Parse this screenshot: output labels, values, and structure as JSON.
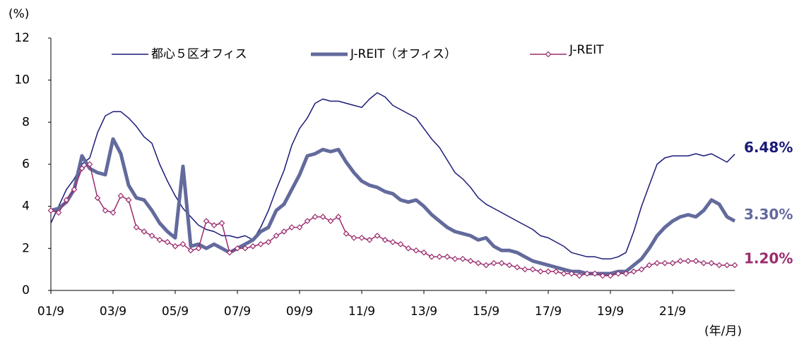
{
  "chart_data": {
    "type": "line",
    "y_label": "(%)",
    "x_label": "(年/月)",
    "categories": [
      "01/9",
      null,
      null,
      null,
      null,
      null,
      null,
      null,
      "03/9",
      null,
      null,
      null,
      null,
      null,
      null,
      null,
      "05/9",
      null,
      null,
      null,
      null,
      null,
      null,
      null,
      "07/9",
      null,
      null,
      null,
      null,
      null,
      null,
      null,
      "09/9",
      null,
      null,
      null,
      null,
      null,
      null,
      null,
      "11/9",
      null,
      null,
      null,
      null,
      null,
      null,
      null,
      "13/9",
      null,
      null,
      null,
      null,
      null,
      null,
      null,
      "15/9",
      null,
      null,
      null,
      null,
      null,
      null,
      null,
      "17/9",
      null,
      null,
      null,
      null,
      null,
      null,
      null,
      "19/9",
      null,
      null,
      null,
      null,
      null,
      null,
      null,
      "21/9",
      null,
      null,
      null,
      null,
      null,
      null,
      null,
      null
    ],
    "ylim": [
      0,
      12
    ],
    "yticks": [
      0,
      2,
      4,
      6,
      8,
      10,
      12
    ],
    "series": [
      {
        "name": "都心５区オフィス",
        "color": "#1a1a78",
        "width": 1.5,
        "markers": false,
        "values": [
          3.2,
          4.0,
          4.8,
          5.3,
          6.0,
          6.3,
          7.5,
          8.3,
          8.5,
          8.5,
          8.2,
          7.8,
          7.3,
          7.0,
          6.0,
          5.2,
          4.5,
          3.9,
          3.5,
          3.1,
          2.9,
          2.8,
          2.6,
          2.6,
          2.5,
          2.6,
          2.4,
          3.0,
          3.8,
          4.8,
          5.7,
          6.9,
          7.7,
          8.2,
          8.9,
          9.1,
          9.0,
          9.0,
          8.9,
          8.8,
          8.7,
          9.1,
          9.4,
          9.2,
          8.8,
          8.6,
          8.4,
          8.2,
          7.7,
          7.2,
          6.8,
          6.2,
          5.6,
          5.3,
          4.9,
          4.4,
          4.1,
          3.9,
          3.7,
          3.5,
          3.3,
          3.1,
          2.9,
          2.6,
          2.5,
          2.3,
          2.1,
          1.8,
          1.7,
          1.6,
          1.6,
          1.5,
          1.5,
          1.6,
          1.8,
          2.8,
          4.0,
          5.0,
          6.0,
          6.3,
          6.4,
          6.4,
          6.4,
          6.5,
          6.4,
          6.5,
          6.3,
          6.1,
          6.48
        ],
        "value_labels": [
          null,
          null,
          null,
          null,
          null,
          null,
          null,
          null,
          null,
          null,
          null,
          null,
          null,
          null,
          null,
          null,
          null,
          null,
          null,
          null,
          null,
          null,
          null,
          null,
          null,
          null,
          null,
          null,
          null,
          null,
          null,
          null,
          null,
          null,
          null,
          null,
          null,
          null,
          null,
          null,
          null,
          null,
          null,
          null,
          null,
          null,
          null,
          null,
          null,
          null,
          null,
          null,
          null,
          null,
          null,
          null,
          null,
          null,
          null,
          null,
          null,
          null,
          null,
          null,
          null,
          null,
          null,
          null,
          null,
          null,
          null,
          null,
          null,
          null,
          null,
          null,
          null,
          null,
          null,
          null,
          null,
          null,
          null,
          null,
          null,
          null,
          null,
          null,
          "6.48%"
        ]
      },
      {
        "name": "J-REIT（オフィス）",
        "color": "#636a9c",
        "width": 5,
        "markers": false,
        "values": [
          3.8,
          3.9,
          4.2,
          4.8,
          6.4,
          5.8,
          5.6,
          5.5,
          7.2,
          6.5,
          5.0,
          4.4,
          4.3,
          3.8,
          3.2,
          2.8,
          2.5,
          5.9,
          2.1,
          2.2,
          2.0,
          2.2,
          2.0,
          1.8,
          2.0,
          2.2,
          2.4,
          2.8,
          3.0,
          3.8,
          4.1,
          4.8,
          5.5,
          6.4,
          6.5,
          6.7,
          6.6,
          6.7,
          6.1,
          5.6,
          5.2,
          5.0,
          4.9,
          4.7,
          4.6,
          4.3,
          4.2,
          4.3,
          4.0,
          3.6,
          3.3,
          3.0,
          2.8,
          2.7,
          2.6,
          2.4,
          2.5,
          2.1,
          1.9,
          1.9,
          1.8,
          1.6,
          1.4,
          1.3,
          1.2,
          1.1,
          1.0,
          0.9,
          0.9,
          0.8,
          0.8,
          0.8,
          0.8,
          0.9,
          0.9,
          1.2,
          1.5,
          2.0,
          2.6,
          3.0,
          3.3,
          3.5,
          3.6,
          3.5,
          3.8,
          4.3,
          4.1,
          3.5,
          3.3
        ],
        "value_labels": [
          null,
          null,
          null,
          null,
          null,
          null,
          null,
          null,
          null,
          null,
          null,
          null,
          null,
          null,
          null,
          null,
          null,
          null,
          null,
          null,
          null,
          null,
          null,
          null,
          null,
          null,
          null,
          null,
          null,
          null,
          null,
          null,
          null,
          null,
          null,
          null,
          null,
          null,
          null,
          null,
          null,
          null,
          null,
          null,
          null,
          null,
          null,
          null,
          null,
          null,
          null,
          null,
          null,
          null,
          null,
          null,
          null,
          null,
          null,
          null,
          null,
          null,
          null,
          null,
          null,
          null,
          null,
          null,
          null,
          null,
          null,
          null,
          null,
          null,
          null,
          null,
          null,
          null,
          null,
          null,
          null,
          null,
          null,
          null,
          null,
          null,
          null,
          null,
          "3.30%"
        ]
      },
      {
        "name": "J-REIT",
        "color": "#9b2b6d",
        "width": 1.5,
        "markers": true,
        "values": [
          3.8,
          3.7,
          4.3,
          4.8,
          5.8,
          6.0,
          4.4,
          3.8,
          3.7,
          4.5,
          4.3,
          3.0,
          2.8,
          2.6,
          2.4,
          2.3,
          2.1,
          2.2,
          1.9,
          2.0,
          3.3,
          3.1,
          3.2,
          1.8,
          2.0,
          2.0,
          2.1,
          2.2,
          2.3,
          2.6,
          2.8,
          3.0,
          3.0,
          3.3,
          3.5,
          3.5,
          3.3,
          3.5,
          2.7,
          2.5,
          2.5,
          2.4,
          2.6,
          2.4,
          2.3,
          2.2,
          2.0,
          1.9,
          1.8,
          1.6,
          1.6,
          1.6,
          1.5,
          1.5,
          1.4,
          1.3,
          1.2,
          1.3,
          1.3,
          1.2,
          1.1,
          1.0,
          1.0,
          0.9,
          0.9,
          0.9,
          0.8,
          0.8,
          0.7,
          0.8,
          0.8,
          0.7,
          0.7,
          0.8,
          0.8,
          0.9,
          1.0,
          1.2,
          1.3,
          1.3,
          1.3,
          1.4,
          1.4,
          1.4,
          1.3,
          1.3,
          1.2,
          1.2,
          1.2
        ],
        "value_labels": [
          null,
          null,
          null,
          null,
          null,
          null,
          null,
          null,
          null,
          null,
          null,
          null,
          null,
          null,
          null,
          null,
          null,
          null,
          null,
          null,
          null,
          null,
          null,
          null,
          null,
          null,
          null,
          null,
          null,
          null,
          null,
          null,
          null,
          null,
          null,
          null,
          null,
          null,
          null,
          null,
          null,
          null,
          null,
          null,
          null,
          null,
          null,
          null,
          null,
          null,
          null,
          null,
          null,
          null,
          null,
          null,
          null,
          null,
          null,
          null,
          null,
          null,
          null,
          null,
          null,
          null,
          null,
          null,
          null,
          null,
          null,
          null,
          null,
          null,
          null,
          null,
          null,
          null,
          null,
          null,
          null,
          null,
          null,
          null,
          null,
          null,
          null,
          null,
          "1.20%"
        ]
      }
    ]
  }
}
